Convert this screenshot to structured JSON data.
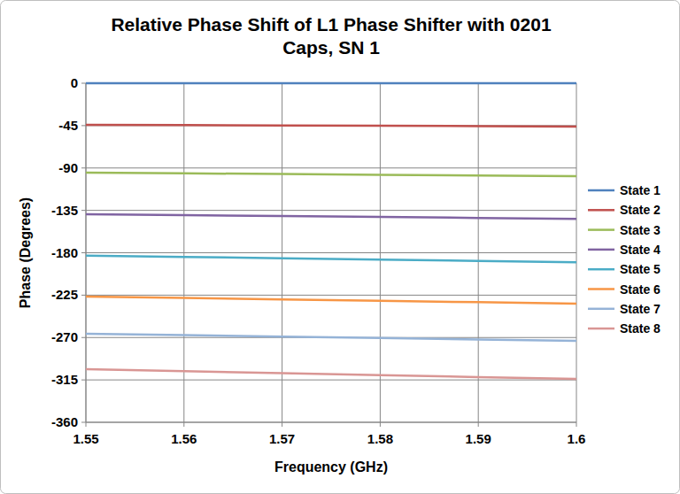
{
  "chart_data": {
    "type": "line",
    "title": "Relative Phase Shift of L1 Phase Shifter with 0201 Caps, SN 1",
    "x_label": "Frequency (GHz)",
    "y_label": "Phase (Degrees)",
    "x": [
      1.55,
      1.56,
      1.57,
      1.58,
      1.59,
      1.6
    ],
    "series": [
      {
        "name": "State 1",
        "color": "#4f81bd",
        "values": [
          0,
          0,
          0,
          0,
          0,
          0
        ]
      },
      {
        "name": "State 2",
        "color": "#c0504d",
        "values": [
          -44.2,
          -44.5,
          -44.8,
          -45.1,
          -45.5,
          -46
        ]
      },
      {
        "name": "State 3",
        "color": "#9bbb59",
        "values": [
          -95,
          -95.7,
          -96.4,
          -97.2,
          -97.9,
          -98.7
        ]
      },
      {
        "name": "State 4",
        "color": "#8064a2",
        "values": [
          -139,
          -140,
          -141,
          -142,
          -143,
          -144
        ]
      },
      {
        "name": "State 5",
        "color": "#4bacc6",
        "values": [
          -183,
          -184.4,
          -185.8,
          -187.2,
          -188.6,
          -190
        ]
      },
      {
        "name": "State 6",
        "color": "#f79646",
        "values": [
          -226.5,
          -228,
          -229.5,
          -231,
          -232.5,
          -234
        ]
      },
      {
        "name": "State 7",
        "color": "#95b3d7",
        "values": [
          -266,
          -267.5,
          -269,
          -270.5,
          -272,
          -273.5
        ]
      },
      {
        "name": "State 8",
        "color": "#d99694",
        "values": [
          -303.6,
          -305.7,
          -307.8,
          -309.9,
          -312,
          -314
        ]
      }
    ],
    "xlim": [
      1.55,
      1.6
    ],
    "xticks": [
      1.55,
      1.56,
      1.57,
      1.58,
      1.59,
      1.6
    ],
    "ylim": [
      -360,
      0
    ],
    "yticks": [
      0,
      -45,
      -90,
      -135,
      -180,
      -225,
      -270,
      -315,
      -360
    ],
    "grid": true,
    "legend": "right"
  }
}
